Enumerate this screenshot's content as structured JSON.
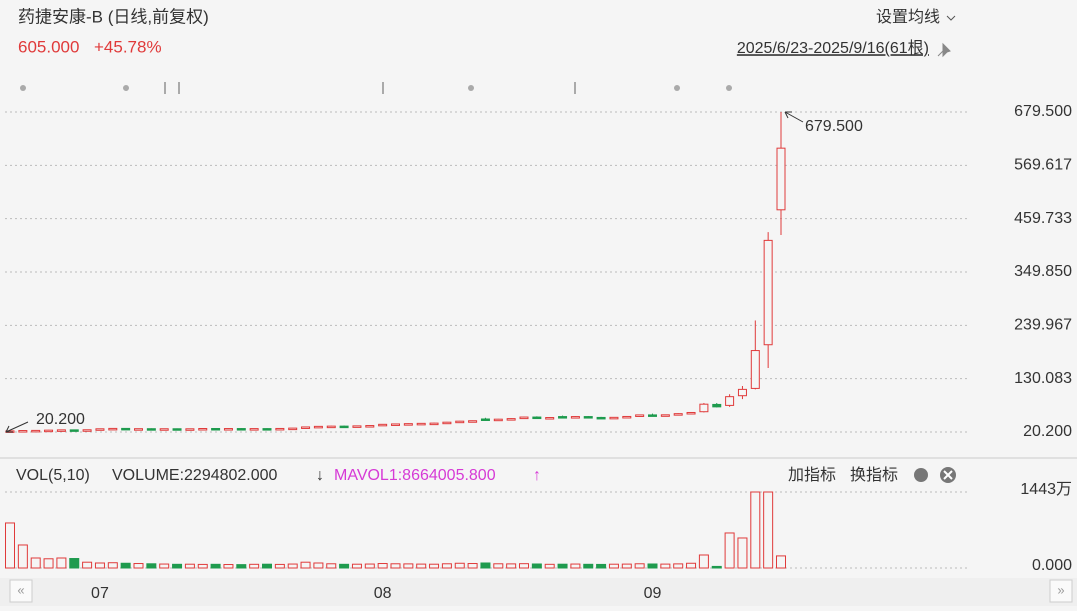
{
  "chart_data": {
    "type": "candlestick",
    "title": "药捷安康-B (日线,前复权)",
    "price": "605.000",
    "change": "+45.78%",
    "date_range": "2025/6/23-2025/9/16(61根)",
    "ma_button": "设置均线",
    "max_label": "679.500",
    "min_label": "20.200",
    "up_color": "#e03a3a",
    "down_color": "#1e9b4e",
    "ylim": [
      20.2,
      679.5
    ],
    "yticks": [
      {
        "value": 20.2,
        "label": "20.200"
      },
      {
        "value": 130.083,
        "label": "130.083"
      },
      {
        "value": 239.967,
        "label": "239.967"
      },
      {
        "value": 349.85,
        "label": "349.850"
      },
      {
        "value": 459.733,
        "label": "459.733"
      },
      {
        "value": 569.617,
        "label": "569.617"
      },
      {
        "value": 679.5,
        "label": "679.500"
      }
    ],
    "grid": true,
    "xticks": [
      {
        "value": 7,
        "label": "07"
      },
      {
        "value": 29,
        "label": "08"
      },
      {
        "value": 50,
        "label": "09"
      }
    ],
    "candles": [
      [
        21,
        23,
        20.2,
        22.5
      ],
      [
        22.5,
        24,
        21.8,
        23.2
      ],
      [
        23,
        24,
        22.4,
        23.5
      ],
      [
        23.5,
        24.5,
        22.8,
        24
      ],
      [
        24,
        25,
        23.4,
        24.6
      ],
      [
        24.6,
        25.2,
        23.8,
        24.2
      ],
      [
        24.2,
        25,
        23.6,
        24.8
      ],
      [
        25,
        27,
        24.6,
        26.8
      ],
      [
        26.8,
        28,
        26,
        27.6
      ],
      [
        27.6,
        28.2,
        26.2,
        26.5
      ],
      [
        26.5,
        27.4,
        25.8,
        27
      ],
      [
        27,
        27.8,
        26.2,
        26.6
      ],
      [
        26.6,
        27.4,
        25.9,
        26.9
      ],
      [
        26.9,
        27.6,
        26.2,
        26.4
      ],
      [
        26.4,
        27.2,
        25.8,
        26.8
      ],
      [
        26.8,
        27.8,
        26.2,
        27.4
      ],
      [
        27.4,
        28,
        26.5,
        26.9
      ],
      [
        26.9,
        27.6,
        26.3,
        27.3
      ],
      [
        27.3,
        28.2,
        26.6,
        26.8
      ],
      [
        26.8,
        27.5,
        26.1,
        27.2
      ],
      [
        27.2,
        28,
        26.5,
        26.9
      ],
      [
        26.9,
        27.8,
        26.4,
        27.5
      ],
      [
        27.5,
        28.6,
        27,
        28.2
      ],
      [
        28.2,
        31,
        27.8,
        30.6
      ],
      [
        30.6,
        32.4,
        30,
        31.8
      ],
      [
        31.8,
        33,
        31,
        32.3
      ],
      [
        32.3,
        33.6,
        31.5,
        31.9
      ],
      [
        31.9,
        33.2,
        31.2,
        32.8
      ],
      [
        32.8,
        34,
        32.2,
        33.5
      ],
      [
        33.5,
        36.5,
        33,
        36
      ],
      [
        36,
        37.6,
        35.2,
        36.8
      ],
      [
        36.8,
        38,
        36,
        37.4
      ],
      [
        37.4,
        38.6,
        36.6,
        38
      ],
      [
        38,
        39.4,
        37.2,
        38.5
      ],
      [
        38.5,
        41,
        38,
        40.4
      ],
      [
        40.4,
        43.2,
        40,
        42.5
      ],
      [
        42.5,
        44,
        41.4,
        43.4
      ],
      [
        47,
        49.5,
        44.6,
        45.5
      ],
      [
        45.5,
        47.2,
        44.8,
        46.6
      ],
      [
        46.6,
        48.5,
        46,
        47.8
      ],
      [
        47.8,
        52,
        47,
        51
      ],
      [
        51,
        52.5,
        48.2,
        49
      ],
      [
        49,
        50.5,
        47.8,
        50
      ],
      [
        52,
        54,
        50.6,
        51.2
      ],
      [
        51.2,
        52.6,
        50.4,
        52
      ],
      [
        52,
        53.2,
        49.6,
        50.2
      ],
      [
        50.2,
        51.4,
        48.6,
        49.2
      ],
      [
        49.2,
        51,
        48.4,
        50.4
      ],
      [
        50.4,
        52.8,
        49.8,
        52.2
      ],
      [
        52.2,
        56,
        51.6,
        55.4
      ],
      [
        55.4,
        58,
        53.6,
        54.4
      ],
      [
        54.4,
        56.2,
        53,
        55.6
      ],
      [
        55.6,
        58.8,
        55,
        58
      ],
      [
        58,
        61,
        56.8,
        60.4
      ],
      [
        62,
        80,
        60.5,
        77.5
      ],
      [
        77,
        80,
        70.8,
        72
      ],
      [
        75,
        98,
        72,
        93
      ],
      [
        95,
        115,
        88,
        108
      ],
      [
        110,
        250,
        108,
        188
      ],
      [
        200,
        432,
        152,
        415
      ],
      [
        478,
        679.5,
        426,
        605
      ]
    ],
    "volume_title": "VOL(5,10)",
    "volume_text": "VOLUME:2294802.000",
    "mavol_text": "MAVOL1:8664005.800",
    "buttons": [
      "加指标",
      "换指标"
    ],
    "y2lim": [
      0,
      1443
    ],
    "y2ticks": [
      {
        "value": 0,
        "label": "0.000"
      },
      {
        "value": 1443,
        "label": "1443万"
      }
    ],
    "volumes": [
      855,
      437,
      190,
      175,
      190,
      180,
      110,
      95,
      100,
      90,
      85,
      80,
      75,
      70,
      72,
      68,
      70,
      66,
      64,
      70,
      72,
      68,
      75,
      110,
      95,
      80,
      70,
      72,
      75,
      85,
      80,
      78,
      74,
      72,
      80,
      90,
      85,
      95,
      80,
      78,
      82,
      76,
      70,
      72,
      75,
      70,
      68,
      72,
      74,
      80,
      76,
      74,
      78,
      90,
      247,
      30,
      665,
      570,
      1443,
      1443,
      229.48
    ]
  }
}
